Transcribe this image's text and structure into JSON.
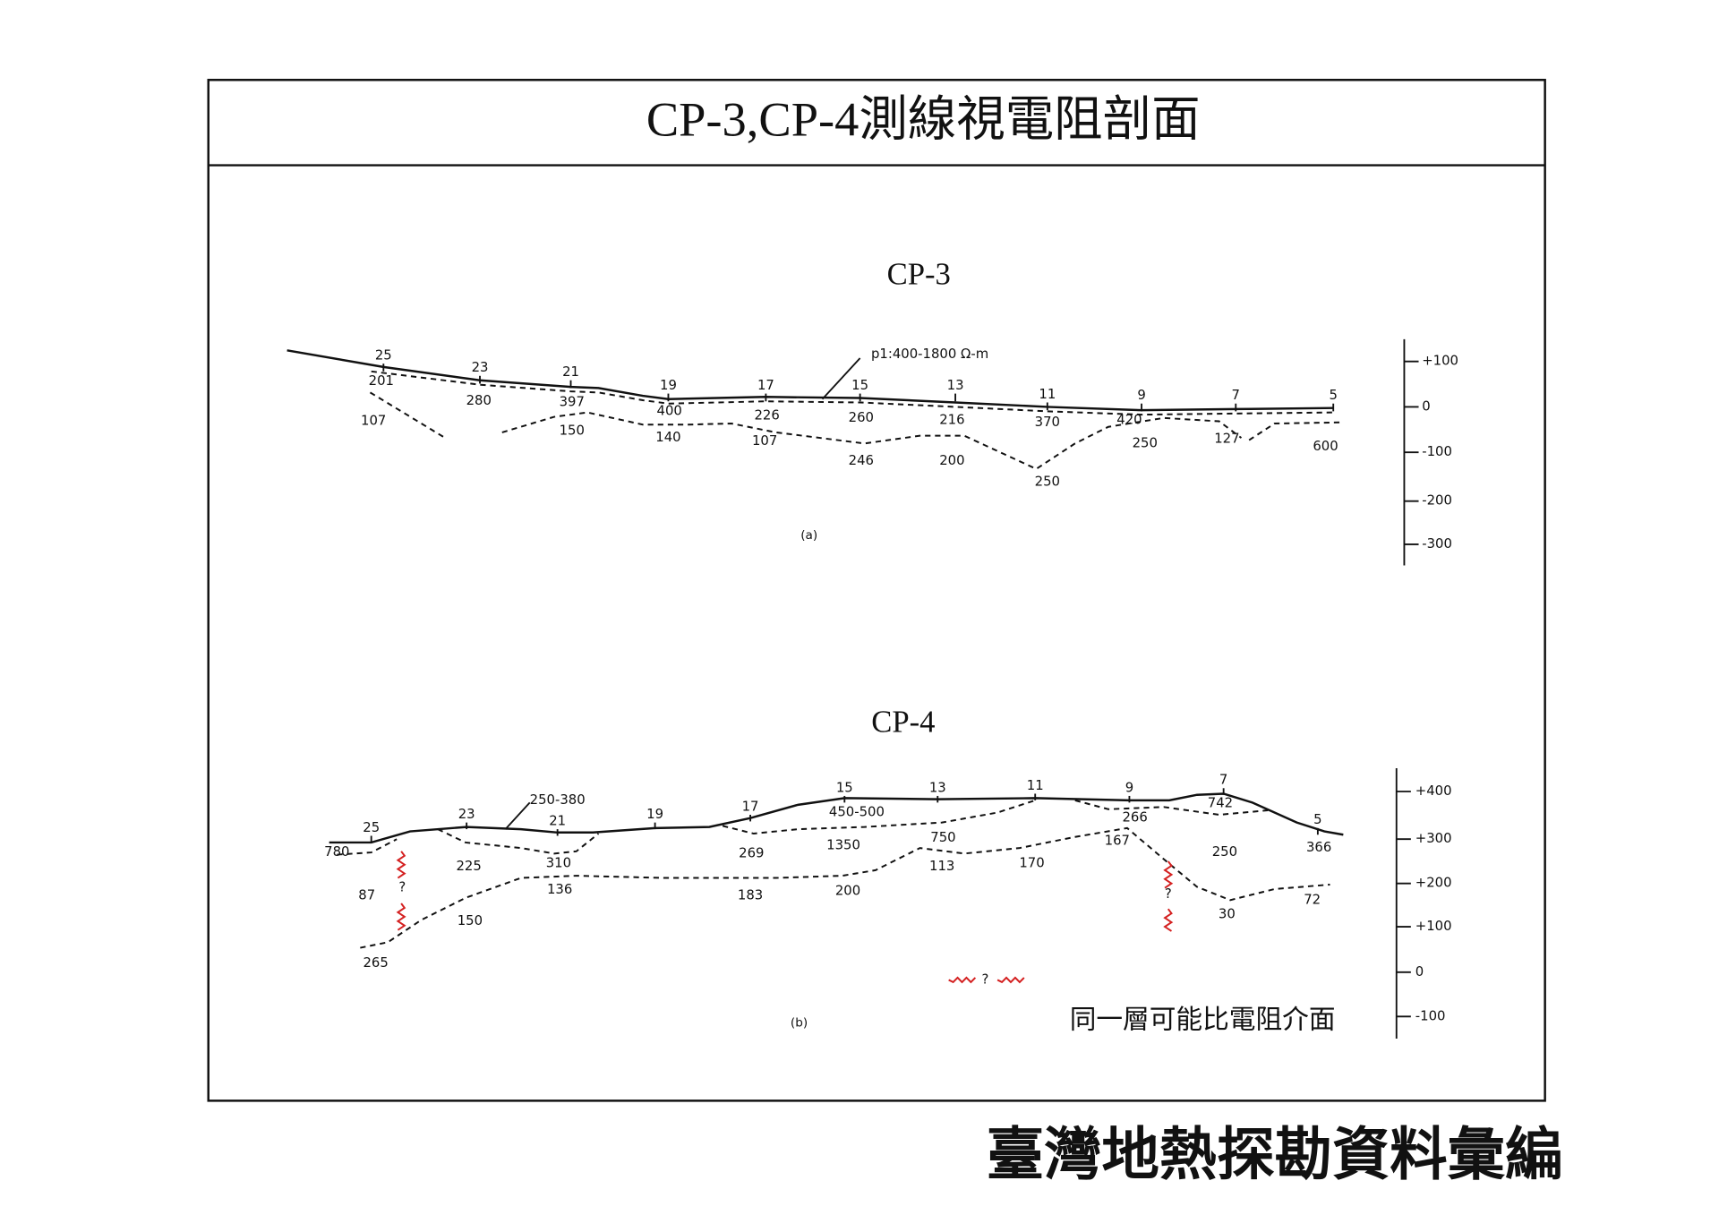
{
  "header": {
    "title": "CP-3,CP-4測線視電阻剖面"
  },
  "cp3": {
    "title": "CP-3",
    "stations": [
      "25",
      "23",
      "21",
      "19",
      "17",
      "15",
      "13",
      "11",
      "9",
      "7",
      "5"
    ],
    "values": [
      "201",
      "280",
      "397",
      "400",
      "226",
      "260",
      "216",
      "370",
      "420",
      "107",
      "150",
      "140",
      "107",
      "246",
      "200",
      "250",
      "250",
      "127",
      "600"
    ],
    "annotation": "p1:400-1800 Ω-m",
    "caption": "(a)",
    "axis": [
      "+100",
      "0",
      "-100",
      "-200",
      "-300"
    ]
  },
  "cp4": {
    "title": "CP-4",
    "stations": [
      "25",
      "23",
      "21",
      "19",
      "17",
      "15",
      "13",
      "11",
      "9",
      "7",
      "5"
    ],
    "values": [
      "250-380",
      "780",
      "225",
      "310",
      "269",
      "1350",
      "450-500",
      "750",
      "113",
      "170",
      "266",
      "167",
      "742",
      "250",
      "366",
      "87",
      "136",
      "183",
      "200",
      "30",
      "72",
      "150",
      "265"
    ],
    "unknowns": [
      "?",
      "?",
      "?"
    ],
    "caption": "(b)",
    "legend": "同一層可能比電阻介面",
    "axis": [
      "+400",
      "+300",
      "+200",
      "+100",
      "0",
      "-100"
    ]
  },
  "footer": {
    "text": "臺灣地熱探勘資料彙編"
  }
}
